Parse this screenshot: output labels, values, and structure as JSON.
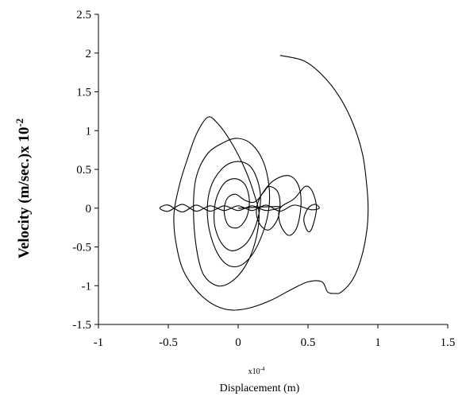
{
  "chart_data": {
    "type": "line",
    "title": "",
    "xlabel": "Displacement (m)",
    "xlabel_multiplier": "x10",
    "xlabel_multiplier_exp": "-4",
    "ylabel": "Velocity (m/sec.)x 10",
    "ylabel_exp": "-2",
    "xlim": [
      -1,
      1.5
    ],
    "ylim": [
      -1.5,
      2.5
    ],
    "xticks": [
      -1,
      -0.5,
      0,
      0.5,
      1,
      1.5
    ],
    "yticks": [
      -1.5,
      -1,
      -0.5,
      0,
      0.5,
      1,
      1.5,
      2,
      2.5
    ],
    "xtick_labels": [
      "-1",
      "-0.5",
      "0",
      "0.5",
      "1",
      "1.5"
    ],
    "ytick_labels": [
      "-1.5",
      "-1",
      "-0.5",
      "0",
      "0.5",
      "1",
      "1.5",
      "2",
      "2.5"
    ],
    "grid": false,
    "legend": "none",
    "line_color": "#000000",
    "series": [
      {
        "values": [
          [
            0.3,
            1.97
          ],
          [
            0.47,
            1.9
          ],
          [
            0.6,
            1.72
          ],
          [
            0.72,
            1.45
          ],
          [
            0.82,
            1.1
          ],
          [
            0.89,
            0.7
          ],
          [
            0.92,
            0.3
          ],
          [
            0.93,
            0.0
          ],
          [
            0.92,
            -0.3
          ],
          [
            0.88,
            -0.65
          ],
          [
            0.82,
            -0.92
          ],
          [
            0.74,
            -1.08
          ],
          [
            0.69,
            -1.1
          ],
          [
            0.64,
            -1.08
          ],
          [
            0.6,
            -0.95
          ],
          [
            0.5,
            -0.95
          ],
          [
            0.38,
            -1.05
          ],
          [
            0.22,
            -1.2
          ],
          [
            0.05,
            -1.3
          ],
          [
            -0.1,
            -1.3
          ],
          [
            -0.25,
            -1.15
          ],
          [
            -0.38,
            -0.85
          ],
          [
            -0.44,
            -0.5
          ],
          [
            -0.46,
            -0.1
          ],
          [
            -0.42,
            0.3
          ],
          [
            -0.36,
            0.65
          ],
          [
            -0.3,
            0.95
          ],
          [
            -0.22,
            1.17
          ],
          [
            -0.15,
            1.1
          ],
          [
            -0.05,
            0.85
          ],
          [
            0.05,
            0.5
          ],
          [
            0.12,
            0.15
          ],
          [
            0.15,
            -0.1
          ],
          [
            0.12,
            -0.45
          ],
          [
            0.05,
            -0.75
          ],
          [
            -0.05,
            -0.95
          ],
          [
            -0.15,
            -1.0
          ],
          [
            -0.25,
            -0.85
          ],
          [
            -0.3,
            -0.5
          ],
          [
            -0.32,
            0.0
          ],
          [
            -0.3,
            0.4
          ],
          [
            -0.22,
            0.7
          ],
          [
            -0.1,
            0.85
          ],
          [
            0.0,
            0.9
          ],
          [
            0.1,
            0.82
          ],
          [
            0.18,
            0.6
          ],
          [
            0.22,
            0.3
          ],
          [
            0.22,
            0.0
          ],
          [
            0.18,
            -0.3
          ],
          [
            0.1,
            -0.6
          ],
          [
            0.0,
            -0.75
          ],
          [
            -0.1,
            -0.7
          ],
          [
            -0.18,
            -0.45
          ],
          [
            -0.22,
            -0.1
          ],
          [
            -0.2,
            0.25
          ],
          [
            -0.12,
            0.5
          ],
          [
            -0.02,
            0.6
          ],
          [
            0.08,
            0.55
          ],
          [
            0.14,
            0.35
          ],
          [
            0.16,
            0.1
          ],
          [
            0.13,
            -0.2
          ],
          [
            0.06,
            -0.45
          ],
          [
            -0.04,
            -0.55
          ],
          [
            -0.12,
            -0.45
          ],
          [
            -0.17,
            -0.2
          ],
          [
            -0.16,
            0.1
          ],
          [
            -0.1,
            0.32
          ],
          [
            -0.02,
            0.38
          ],
          [
            0.05,
            0.3
          ],
          [
            0.08,
            0.1
          ],
          [
            0.06,
            -0.12
          ],
          [
            0.0,
            -0.25
          ],
          [
            -0.07,
            -0.22
          ],
          [
            -0.1,
            -0.05
          ],
          [
            -0.08,
            0.12
          ],
          [
            -0.02,
            0.18
          ],
          [
            0.05,
            0.1
          ],
          [
            0.12,
            0.08
          ],
          [
            0.18,
            0.2
          ],
          [
            0.22,
            0.28
          ],
          [
            0.28,
            0.22
          ],
          [
            0.3,
            0.05
          ],
          [
            0.28,
            -0.15
          ],
          [
            0.22,
            -0.28
          ],
          [
            0.16,
            -0.22
          ],
          [
            0.13,
            -0.05
          ],
          [
            0.16,
            0.15
          ],
          [
            0.25,
            0.35
          ],
          [
            0.36,
            0.42
          ],
          [
            0.43,
            0.3
          ],
          [
            0.45,
            0.05
          ],
          [
            0.42,
            -0.25
          ],
          [
            0.36,
            -0.35
          ],
          [
            0.3,
            -0.2
          ],
          [
            0.3,
            0.0
          ],
          [
            0.4,
            0.12
          ],
          [
            0.48,
            0.28
          ],
          [
            0.53,
            0.22
          ],
          [
            0.56,
            0.0
          ],
          [
            0.53,
            -0.25
          ],
          [
            0.5,
            -0.3
          ],
          [
            0.47,
            -0.15
          ],
          [
            0.5,
            0.0
          ],
          [
            0.55,
            0.05
          ],
          [
            0.58,
            0.0
          ],
          [
            0.52,
            -0.02
          ],
          [
            0.4,
            0.04
          ],
          [
            0.3,
            -0.04
          ],
          [
            0.2,
            0.04
          ],
          [
            0.1,
            -0.03
          ],
          [
            0.0,
            0.03
          ],
          [
            -0.1,
            -0.03
          ],
          [
            -0.2,
            0.03
          ],
          [
            -0.3,
            -0.04
          ],
          [
            -0.4,
            0.05
          ],
          [
            -0.5,
            -0.04
          ],
          [
            -0.56,
            0.0
          ],
          [
            -0.5,
            0.04
          ],
          [
            -0.4,
            -0.05
          ],
          [
            -0.3,
            0.04
          ],
          [
            -0.2,
            -0.04
          ],
          [
            -0.1,
            0.03
          ],
          [
            0.0,
            -0.03
          ],
          [
            0.1,
            0.03
          ],
          [
            0.2,
            -0.03
          ],
          [
            0.3,
            0.02
          ],
          [
            0.0,
            0.0
          ]
        ]
      }
    ]
  }
}
